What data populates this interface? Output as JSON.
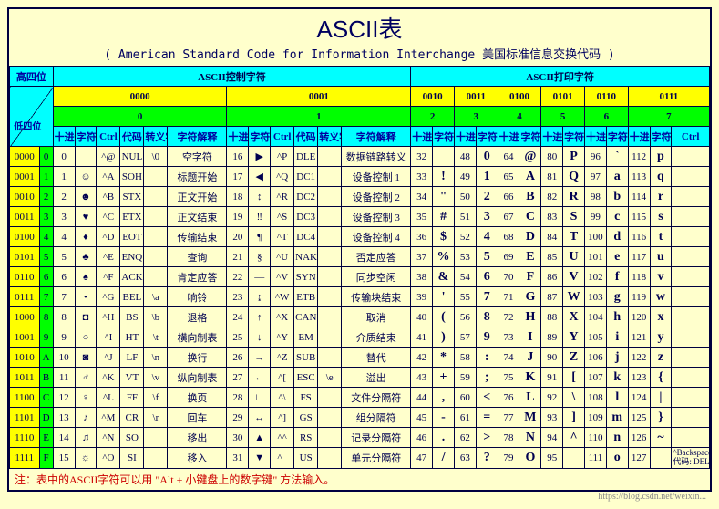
{
  "title": "ASCII表",
  "subtitle": "( American Standard Code for Information Interchange  美国标准信息交换代码 )",
  "colors": {
    "page_bg": "#ffffcc",
    "cyan": "#00ffff",
    "yellow": "#ffff00",
    "green": "#00ff00",
    "border": "#000040",
    "text": "#000050"
  },
  "high_low_labels": {
    "high": "高四位",
    "low": "低四位"
  },
  "section_titles": {
    "control": "ASCII控制字符",
    "printable": "ASCII打印字符"
  },
  "col_binary": [
    "0000",
    "0001",
    "0010",
    "0011",
    "0100",
    "0101",
    "0110",
    "0111"
  ],
  "col_dec": [
    "0",
    "1",
    "2",
    "3",
    "4",
    "5",
    "6",
    "7"
  ],
  "col_heads": {
    "dec": "十进制",
    "char": "字符",
    "ctrl": "Ctrl",
    "code": "代码",
    "esc": "转义字符",
    "desc": "字符解释"
  },
  "low_bits": [
    "0000",
    "0001",
    "0010",
    "0011",
    "0100",
    "0101",
    "0110",
    "0111",
    "1000",
    "1001",
    "1010",
    "1011",
    "1100",
    "1101",
    "1110",
    "1111"
  ],
  "low_hex": [
    "0",
    "1",
    "2",
    "3",
    "4",
    "5",
    "6",
    "7",
    "8",
    "9",
    "A",
    "B",
    "C",
    "D",
    "E",
    "F"
  ],
  "rows": [
    {
      "c0": {
        "dec": "0",
        "char": "",
        "ctrl": "^@",
        "code": "NUL",
        "esc": "\\0",
        "desc": "空字符"
      },
      "c1": {
        "dec": "16",
        "char": "▶",
        "ctrl": "^P",
        "code": "DLE",
        "esc": "",
        "desc": "数据链路转义"
      },
      "c2": {
        "dec": "32",
        "char": ""
      },
      "c3": {
        "dec": "48",
        "char": "0"
      },
      "c4": {
        "dec": "64",
        "char": "@"
      },
      "c5": {
        "dec": "80",
        "char": "P"
      },
      "c6": {
        "dec": "96",
        "char": "`"
      },
      "c7": {
        "dec": "112",
        "char": "p"
      }
    },
    {
      "c0": {
        "dec": "1",
        "char": "☺",
        "ctrl": "^A",
        "code": "SOH",
        "esc": "",
        "desc": "标题开始"
      },
      "c1": {
        "dec": "17",
        "char": "◀",
        "ctrl": "^Q",
        "code": "DC1",
        "esc": "",
        "desc": "设备控制 1"
      },
      "c2": {
        "dec": "33",
        "char": "!"
      },
      "c3": {
        "dec": "49",
        "char": "1"
      },
      "c4": {
        "dec": "65",
        "char": "A"
      },
      "c5": {
        "dec": "81",
        "char": "Q"
      },
      "c6": {
        "dec": "97",
        "char": "a"
      },
      "c7": {
        "dec": "113",
        "char": "q"
      }
    },
    {
      "c0": {
        "dec": "2",
        "char": "☻",
        "ctrl": "^B",
        "code": "STX",
        "esc": "",
        "desc": "正文开始"
      },
      "c1": {
        "dec": "18",
        "char": "↕",
        "ctrl": "^R",
        "code": "DC2",
        "esc": "",
        "desc": "设备控制 2"
      },
      "c2": {
        "dec": "34",
        "char": "\""
      },
      "c3": {
        "dec": "50",
        "char": "2"
      },
      "c4": {
        "dec": "66",
        "char": "B"
      },
      "c5": {
        "dec": "82",
        "char": "R"
      },
      "c6": {
        "dec": "98",
        "char": "b"
      },
      "c7": {
        "dec": "114",
        "char": "r"
      }
    },
    {
      "c0": {
        "dec": "3",
        "char": "♥",
        "ctrl": "^C",
        "code": "ETX",
        "esc": "",
        "desc": "正文结束"
      },
      "c1": {
        "dec": "19",
        "char": "‼",
        "ctrl": "^S",
        "code": "DC3",
        "esc": "",
        "desc": "设备控制 3"
      },
      "c2": {
        "dec": "35",
        "char": "#"
      },
      "c3": {
        "dec": "51",
        "char": "3"
      },
      "c4": {
        "dec": "67",
        "char": "C"
      },
      "c5": {
        "dec": "83",
        "char": "S"
      },
      "c6": {
        "dec": "99",
        "char": "c"
      },
      "c7": {
        "dec": "115",
        "char": "s"
      }
    },
    {
      "c0": {
        "dec": "4",
        "char": "♦",
        "ctrl": "^D",
        "code": "EOT",
        "esc": "",
        "desc": "传输结束"
      },
      "c1": {
        "dec": "20",
        "char": "¶",
        "ctrl": "^T",
        "code": "DC4",
        "esc": "",
        "desc": "设备控制 4"
      },
      "c2": {
        "dec": "36",
        "char": "$"
      },
      "c3": {
        "dec": "52",
        "char": "4"
      },
      "c4": {
        "dec": "68",
        "char": "D"
      },
      "c5": {
        "dec": "84",
        "char": "T"
      },
      "c6": {
        "dec": "100",
        "char": "d"
      },
      "c7": {
        "dec": "116",
        "char": "t"
      }
    },
    {
      "c0": {
        "dec": "5",
        "char": "♣",
        "ctrl": "^E",
        "code": "ENQ",
        "esc": "",
        "desc": "查询"
      },
      "c1": {
        "dec": "21",
        "char": "§",
        "ctrl": "^U",
        "code": "NAK",
        "esc": "",
        "desc": "否定应答"
      },
      "c2": {
        "dec": "37",
        "char": "%"
      },
      "c3": {
        "dec": "53",
        "char": "5"
      },
      "c4": {
        "dec": "69",
        "char": "E"
      },
      "c5": {
        "dec": "85",
        "char": "U"
      },
      "c6": {
        "dec": "101",
        "char": "e"
      },
      "c7": {
        "dec": "117",
        "char": "u"
      }
    },
    {
      "c0": {
        "dec": "6",
        "char": "♠",
        "ctrl": "^F",
        "code": "ACK",
        "esc": "",
        "desc": "肯定应答"
      },
      "c1": {
        "dec": "22",
        "char": "—",
        "ctrl": "^V",
        "code": "SYN",
        "esc": "",
        "desc": "同步空闲"
      },
      "c2": {
        "dec": "38",
        "char": "&"
      },
      "c3": {
        "dec": "54",
        "char": "6"
      },
      "c4": {
        "dec": "70",
        "char": "F"
      },
      "c5": {
        "dec": "86",
        "char": "V"
      },
      "c6": {
        "dec": "102",
        "char": "f"
      },
      "c7": {
        "dec": "118",
        "char": "v"
      }
    },
    {
      "c0": {
        "dec": "7",
        "char": "•",
        "ctrl": "^G",
        "code": "BEL",
        "esc": "\\a",
        "desc": "响铃"
      },
      "c1": {
        "dec": "23",
        "char": "↨",
        "ctrl": "^W",
        "code": "ETB",
        "esc": "",
        "desc": "传输块结束"
      },
      "c2": {
        "dec": "39",
        "char": "'"
      },
      "c3": {
        "dec": "55",
        "char": "7"
      },
      "c4": {
        "dec": "71",
        "char": "G"
      },
      "c5": {
        "dec": "87",
        "char": "W"
      },
      "c6": {
        "dec": "103",
        "char": "g"
      },
      "c7": {
        "dec": "119",
        "char": "w"
      }
    },
    {
      "c0": {
        "dec": "8",
        "char": "◘",
        "ctrl": "^H",
        "code": "BS",
        "esc": "\\b",
        "desc": "退格"
      },
      "c1": {
        "dec": "24",
        "char": "↑",
        "ctrl": "^X",
        "code": "CAN",
        "esc": "",
        "desc": "取消"
      },
      "c2": {
        "dec": "40",
        "char": "("
      },
      "c3": {
        "dec": "56",
        "char": "8"
      },
      "c4": {
        "dec": "72",
        "char": "H"
      },
      "c5": {
        "dec": "88",
        "char": "X"
      },
      "c6": {
        "dec": "104",
        "char": "h"
      },
      "c7": {
        "dec": "120",
        "char": "x"
      }
    },
    {
      "c0": {
        "dec": "9",
        "char": "○",
        "ctrl": "^I",
        "code": "HT",
        "esc": "\\t",
        "desc": "横向制表"
      },
      "c1": {
        "dec": "25",
        "char": "↓",
        "ctrl": "^Y",
        "code": "EM",
        "esc": "",
        "desc": "介质结束"
      },
      "c2": {
        "dec": "41",
        "char": ")"
      },
      "c3": {
        "dec": "57",
        "char": "9"
      },
      "c4": {
        "dec": "73",
        "char": "I"
      },
      "c5": {
        "dec": "89",
        "char": "Y"
      },
      "c6": {
        "dec": "105",
        "char": "i"
      },
      "c7": {
        "dec": "121",
        "char": "y"
      }
    },
    {
      "c0": {
        "dec": "10",
        "char": "◙",
        "ctrl": "^J",
        "code": "LF",
        "esc": "\\n",
        "desc": "换行"
      },
      "c1": {
        "dec": "26",
        "char": "→",
        "ctrl": "^Z",
        "code": "SUB",
        "esc": "",
        "desc": "替代"
      },
      "c2": {
        "dec": "42",
        "char": "*"
      },
      "c3": {
        "dec": "58",
        "char": ":"
      },
      "c4": {
        "dec": "74",
        "char": "J"
      },
      "c5": {
        "dec": "90",
        "char": "Z"
      },
      "c6": {
        "dec": "106",
        "char": "j"
      },
      "c7": {
        "dec": "122",
        "char": "z"
      }
    },
    {
      "c0": {
        "dec": "11",
        "char": "♂",
        "ctrl": "^K",
        "code": "VT",
        "esc": "\\v",
        "desc": "纵向制表"
      },
      "c1": {
        "dec": "27",
        "char": "←",
        "ctrl": "^[",
        "code": "ESC",
        "esc": "\\e",
        "desc": "溢出"
      },
      "c2": {
        "dec": "43",
        "char": "+"
      },
      "c3": {
        "dec": "59",
        "char": ";"
      },
      "c4": {
        "dec": "75",
        "char": "K"
      },
      "c5": {
        "dec": "91",
        "char": "["
      },
      "c6": {
        "dec": "107",
        "char": "k"
      },
      "c7": {
        "dec": "123",
        "char": "{"
      }
    },
    {
      "c0": {
        "dec": "12",
        "char": "♀",
        "ctrl": "^L",
        "code": "FF",
        "esc": "\\f",
        "desc": "换页"
      },
      "c1": {
        "dec": "28",
        "char": "∟",
        "ctrl": "^\\",
        "code": "FS",
        "esc": "",
        "desc": "文件分隔符"
      },
      "c2": {
        "dec": "44",
        "char": ","
      },
      "c3": {
        "dec": "60",
        "char": "<"
      },
      "c4": {
        "dec": "76",
        "char": "L"
      },
      "c5": {
        "dec": "92",
        "char": "\\"
      },
      "c6": {
        "dec": "108",
        "char": "l"
      },
      "c7": {
        "dec": "124",
        "char": "|"
      }
    },
    {
      "c0": {
        "dec": "13",
        "char": "♪",
        "ctrl": "^M",
        "code": "CR",
        "esc": "\\r",
        "desc": "回车"
      },
      "c1": {
        "dec": "29",
        "char": "↔",
        "ctrl": "^]",
        "code": "GS",
        "esc": "",
        "desc": "组分隔符"
      },
      "c2": {
        "dec": "45",
        "char": "-"
      },
      "c3": {
        "dec": "61",
        "char": "="
      },
      "c4": {
        "dec": "77",
        "char": "M"
      },
      "c5": {
        "dec": "93",
        "char": "]"
      },
      "c6": {
        "dec": "109",
        "char": "m"
      },
      "c7": {
        "dec": "125",
        "char": "}"
      }
    },
    {
      "c0": {
        "dec": "14",
        "char": "♫",
        "ctrl": "^N",
        "code": "SO",
        "esc": "",
        "desc": "移出"
      },
      "c1": {
        "dec": "30",
        "char": "▲",
        "ctrl": "^^",
        "code": "RS",
        "esc": "",
        "desc": "记录分隔符"
      },
      "c2": {
        "dec": "46",
        "char": "."
      },
      "c3": {
        "dec": "62",
        "char": ">"
      },
      "c4": {
        "dec": "78",
        "char": "N"
      },
      "c5": {
        "dec": "94",
        "char": "^"
      },
      "c6": {
        "dec": "110",
        "char": "n"
      },
      "c7": {
        "dec": "126",
        "char": "~"
      }
    },
    {
      "c0": {
        "dec": "15",
        "char": "☼",
        "ctrl": "^O",
        "code": "SI",
        "esc": "",
        "desc": "移入"
      },
      "c1": {
        "dec": "31",
        "char": "▼",
        "ctrl": "^_",
        "code": "US",
        "esc": "",
        "desc": "单元分隔符"
      },
      "c2": {
        "dec": "47",
        "char": "/"
      },
      "c3": {
        "dec": "63",
        "char": "?"
      },
      "c4": {
        "dec": "79",
        "char": "O"
      },
      "c5": {
        "dec": "95",
        "char": "_"
      },
      "c6": {
        "dec": "111",
        "char": "o"
      },
      "c7": {
        "dec": "127",
        "char": "",
        "del": "^Backspace\n代码: DEL"
      }
    }
  ],
  "footnote": "注：表中的ASCII字符可以用 \"Alt + 小键盘上的数字键\" 方法输入。",
  "watermark": "https://blog.csdn.net/weixin..."
}
